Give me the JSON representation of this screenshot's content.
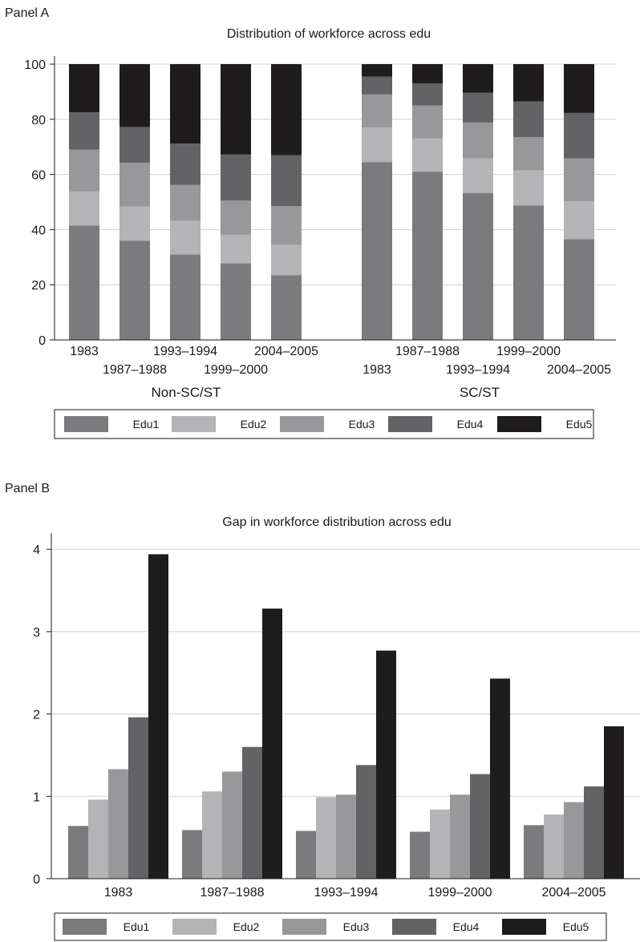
{
  "colors": {
    "edu1": "#7b7b7d",
    "edu2": "#b4b4b6",
    "edu3": "#98989a",
    "edu4": "#636365",
    "edu5": "#1e1c1d",
    "grid": "#d0d0d0",
    "axis": "#1a1a1a"
  },
  "chart_data": [
    {
      "panel_label": "Panel A",
      "type": "bar",
      "stacked": true,
      "title": "Distribution of workforce across edu",
      "ylim": [
        0,
        100
      ],
      "yticks": [
        0,
        20,
        40,
        60,
        80,
        100
      ],
      "grid": true,
      "legend_position": "bottom",
      "groups": [
        {
          "label": "Non-SC/ST",
          "categories": [
            "1983",
            "1987–1988",
            "1993–1994",
            "1999–2000",
            "2004–2005"
          ],
          "series": [
            {
              "name": "Edu1",
              "values": [
                41.5,
                36.0,
                31.0,
                27.8,
                23.5
              ]
            },
            {
              "name": "Edu2",
              "values": [
                12.3,
                12.4,
                12.2,
                10.3,
                11.0
              ]
            },
            {
              "name": "Edu3",
              "values": [
                15.2,
                15.8,
                13.0,
                12.4,
                14.0
              ]
            },
            {
              "name": "Edu4",
              "values": [
                13.5,
                13.0,
                15.0,
                16.7,
                18.5
              ]
            },
            {
              "name": "Edu5",
              "values": [
                17.5,
                22.8,
                28.8,
                32.8,
                33.0
              ]
            }
          ]
        },
        {
          "label": "SC/ST",
          "categories": [
            "1983",
            "1987–1988",
            "1993–1994",
            "1999–2000",
            "2004–2005"
          ],
          "series": [
            {
              "name": "Edu1",
              "values": [
                64.5,
                61.0,
                53.3,
                48.8,
                36.5
              ]
            },
            {
              "name": "Edu2",
              "values": [
                12.5,
                12.0,
                12.5,
                12.7,
                13.8
              ]
            },
            {
              "name": "Edu3",
              "values": [
                12.0,
                12.0,
                13.0,
                12.0,
                15.5
              ]
            },
            {
              "name": "Edu4",
              "values": [
                6.5,
                8.0,
                10.8,
                13.0,
                16.5
              ]
            },
            {
              "name": "Edu5",
              "values": [
                4.5,
                7.0,
                10.4,
                13.5,
                17.7
              ]
            }
          ]
        }
      ],
      "legend": [
        "Edu1",
        "Edu2",
        "Edu3",
        "Edu4",
        "Edu5"
      ]
    },
    {
      "panel_label": "Panel B",
      "type": "bar",
      "stacked": false,
      "title": "Gap in workforce distribution across edu",
      "ylim": [
        0,
        4.2
      ],
      "yticks": [
        0,
        1,
        2,
        3,
        4
      ],
      "grid": true,
      "legend_position": "bottom",
      "categories": [
        "1983",
        "1987–1988",
        "1993–1994",
        "1999–2000",
        "2004–2005"
      ],
      "series": [
        {
          "name": "Edu1",
          "values": [
            0.64,
            0.59,
            0.58,
            0.57,
            0.65
          ]
        },
        {
          "name": "Edu2",
          "values": [
            0.96,
            1.06,
            0.99,
            0.84,
            0.78
          ]
        },
        {
          "name": "Edu3",
          "values": [
            1.33,
            1.3,
            1.02,
            1.02,
            0.93
          ]
        },
        {
          "name": "Edu4",
          "values": [
            1.96,
            1.6,
            1.38,
            1.27,
            1.12
          ]
        },
        {
          "name": "Edu5",
          "values": [
            3.94,
            3.28,
            2.77,
            2.43,
            1.85
          ]
        }
      ],
      "legend": [
        "Edu1",
        "Edu2",
        "Edu3",
        "Edu4",
        "Edu5"
      ]
    }
  ]
}
